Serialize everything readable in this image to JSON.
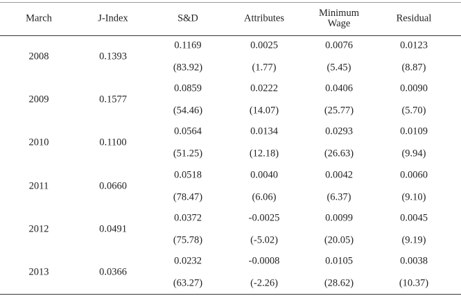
{
  "table": {
    "columns": [
      "March",
      "J-Index",
      "S&D",
      "Attributes",
      "Minimum Wage",
      "Residual"
    ],
    "rows": [
      {
        "year": "2008",
        "j_index": "0.1393",
        "values": [
          "0.1169",
          "0.0025",
          "0.0076",
          "0.0123"
        ],
        "shares": [
          "(83.92)",
          "(1.77)",
          "(5.45)",
          "(8.87)"
        ]
      },
      {
        "year": "2009",
        "j_index": "0.1577",
        "values": [
          "0.0859",
          "0.0222",
          "0.0406",
          "0.0090"
        ],
        "shares": [
          "(54.46)",
          "(14.07)",
          "(25.77)",
          "(5.70)"
        ]
      },
      {
        "year": "2010",
        "j_index": "0.1100",
        "values": [
          "0.0564",
          "0.0134",
          "0.0293",
          "0.0109"
        ],
        "shares": [
          "(51.25)",
          "(12.18)",
          "(26.63)",
          "(9.94)"
        ]
      },
      {
        "year": "2011",
        "j_index": "0.0660",
        "values": [
          "0.0518",
          "0.0040",
          "0.0042",
          "0.0060"
        ],
        "shares": [
          "(78.47)",
          "(6.06)",
          "(6.37)",
          "(9.10)"
        ]
      },
      {
        "year": "2012",
        "j_index": "0.0491",
        "values": [
          "0.0372",
          "-0.0025",
          "0.0099",
          "0.0045"
        ],
        "shares": [
          "(75.78)",
          "(-5.02)",
          "(20.05)",
          "(9.19)"
        ]
      },
      {
        "year": "2013",
        "j_index": "0.0366",
        "values": [
          "0.0232",
          "-0.0008",
          "0.0105",
          "0.0038"
        ],
        "shares": [
          "(63.27)",
          "(-2.26)",
          "(28.62)",
          "(10.37)"
        ]
      }
    ]
  }
}
